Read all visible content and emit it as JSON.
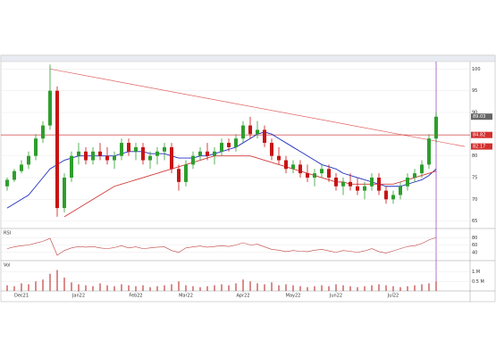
{
  "chart_data": {
    "type": "candlestick",
    "categories": [
      null,
      null,
      "Dec21",
      null,
      null,
      null,
      null,
      null,
      null,
      null,
      "Jan22",
      null,
      null,
      null,
      null,
      null,
      null,
      null,
      "Feb22",
      null,
      null,
      null,
      null,
      null,
      null,
      "Mar22",
      null,
      null,
      null,
      null,
      null,
      null,
      null,
      "Apr22",
      null,
      null,
      null,
      null,
      null,
      null,
      "May22",
      null,
      null,
      null,
      null,
      null,
      "Jun22",
      null,
      null,
      null,
      null,
      null,
      null,
      null,
      "Jul22",
      null,
      null,
      null,
      null,
      null,
      null
    ],
    "open": [
      73,
      74.5,
      76.5,
      78,
      80,
      84,
      87,
      95,
      68,
      75,
      80,
      81,
      79,
      81,
      80,
      79,
      80,
      83,
      81,
      82,
      79,
      80,
      81,
      82,
      77,
      74,
      78,
      80,
      81,
      80,
      81,
      83,
      82,
      84,
      87,
      85,
      86,
      83,
      80,
      79,
      77,
      78,
      76,
      75,
      76,
      77,
      75,
      73,
      74,
      73,
      72,
      73,
      75,
      72,
      70,
      71,
      73,
      75,
      76,
      78,
      84
    ],
    "high": [
      75,
      77,
      79,
      81,
      85,
      88,
      101,
      96,
      76,
      81,
      83,
      82,
      82,
      83,
      82,
      81,
      84,
      84,
      83,
      83,
      81,
      82,
      83,
      83,
      78,
      79,
      81,
      82,
      83,
      82,
      84,
      84,
      85,
      88,
      89,
      88,
      87,
      84,
      82,
      80,
      79,
      79,
      78,
      77,
      78,
      78,
      76,
      75,
      76,
      75,
      74,
      76,
      76,
      73,
      72,
      74,
      76,
      77,
      79,
      85,
      90
    ],
    "low": [
      72,
      74,
      76,
      77,
      79,
      83,
      86,
      66,
      67,
      74,
      78,
      78,
      78,
      79,
      78,
      77,
      79,
      80,
      79,
      78,
      77,
      78,
      79,
      76,
      72,
      73,
      77,
      79,
      79,
      78,
      80,
      81,
      81,
      83,
      84,
      84,
      82,
      79,
      78,
      76,
      76,
      75,
      74,
      73,
      75,
      74,
      72,
      71,
      72,
      71,
      70,
      72,
      71,
      69,
      69,
      70,
      72,
      74,
      75,
      77,
      83
    ],
    "close": [
      74.5,
      76.5,
      78,
      80,
      84,
      87,
      95,
      68,
      75,
      80,
      81,
      79,
      81,
      80,
      79,
      80,
      83,
      81,
      82,
      79,
      80,
      81,
      82,
      77,
      74,
      78,
      80,
      81,
      80,
      81,
      83,
      82,
      84,
      87,
      85,
      86,
      83,
      80,
      79,
      77,
      78,
      76,
      75,
      76,
      77,
      75,
      73,
      74,
      73,
      72,
      73,
      75,
      72,
      70,
      71,
      73,
      75,
      76,
      78,
      84,
      89.03
    ],
    "up_color": "#2e9e2e",
    "down_color": "#c81414",
    "series": [
      {
        "color": "#1f2fbf",
        "values": [
          68,
          69,
          70,
          71,
          73,
          75,
          77,
          78,
          79,
          79.5,
          80,
          80,
          80,
          80,
          80,
          80,
          80.5,
          81,
          81,
          81,
          80.5,
          80.5,
          80.5,
          80,
          79.5,
          79.5,
          79.5,
          80,
          80,
          80.5,
          81,
          81.5,
          82,
          83,
          84,
          85,
          85.5,
          85,
          84,
          83,
          82,
          81,
          80,
          79,
          78,
          77.5,
          77,
          76,
          75.5,
          75,
          74.5,
          74,
          73.5,
          73,
          73,
          73,
          73.5,
          74,
          74.5,
          75.5,
          77
        ]
      },
      {
        "color": "#d33a3a",
        "values": [
          null,
          null,
          null,
          null,
          null,
          null,
          null,
          null,
          66,
          67,
          68,
          69,
          70,
          71,
          72,
          73,
          73.5,
          74,
          74.5,
          75,
          75.5,
          76,
          76.5,
          77,
          77.5,
          78,
          78.5,
          79,
          79.5,
          80,
          80,
          80,
          80,
          80,
          80,
          79.5,
          79,
          78.5,
          78,
          77.5,
          77,
          76.5,
          76,
          75.5,
          75,
          74.5,
          74,
          74,
          73.5,
          73.5,
          73.5,
          73.5,
          73.5,
          73.5,
          73.5,
          74,
          74.5,
          75,
          75.5,
          76,
          76.5
        ]
      }
    ],
    "ylim": [
      63.5,
      101.5
    ],
    "yticks": [
      65,
      70,
      75,
      80,
      85,
      90,
      95,
      100
    ],
    "trendline": {
      "x": [
        6,
        64
      ],
      "y": [
        100,
        82.17
      ],
      "color": "#e06060"
    },
    "price_labels": [
      {
        "value": 89.03,
        "color": "#666666"
      },
      {
        "value": 84.82,
        "color": "#d33030"
      },
      {
        "value": 82.17,
        "color": "#d33030"
      }
    ],
    "rsi": {
      "title": "RSI",
      "color": "#c04040",
      "ylim": [
        20,
        100
      ],
      "yticks": [
        40,
        60,
        80
      ],
      "values": [
        50,
        55,
        58,
        60,
        65,
        70,
        78,
        32,
        45,
        52,
        56,
        54,
        56,
        52,
        50,
        53,
        58,
        52,
        55,
        50,
        52,
        54,
        55,
        45,
        40,
        52,
        55,
        57,
        54,
        56,
        58,
        56,
        60,
        66,
        60,
        62,
        55,
        48,
        46,
        42,
        45,
        43,
        42,
        46,
        48,
        44,
        40,
        45,
        43,
        40,
        44,
        50,
        42,
        38,
        44,
        50,
        56,
        58,
        64,
        74,
        80
      ]
    },
    "volume": {
      "title": "Vol",
      "color": "#c04040",
      "ylim": [
        0,
        1500000
      ],
      "yticks": [
        {
          "value": 500000,
          "label": "0.5 M"
        },
        {
          "value": 1000000,
          "label": "1.M"
        }
      ],
      "values": [
        300000,
        250000,
        400000,
        350000,
        500000,
        600000,
        900000,
        1100000,
        700000,
        450000,
        350000,
        300000,
        250000,
        400000,
        300000,
        250000,
        350000,
        300000,
        250000,
        300000,
        200000,
        250000,
        300000,
        350000,
        500000,
        300000,
        250000,
        200000,
        250000,
        300000,
        350000,
        300000,
        400000,
        600000,
        500000,
        400000,
        350000,
        450000,
        300000,
        350000,
        300000,
        250000,
        200000,
        250000,
        300000,
        250000,
        350000,
        300000,
        250000,
        200000,
        250000,
        300000,
        350000,
        300000,
        250000,
        200000,
        250000,
        300000,
        350000,
        400000,
        500000
      ]
    }
  }
}
